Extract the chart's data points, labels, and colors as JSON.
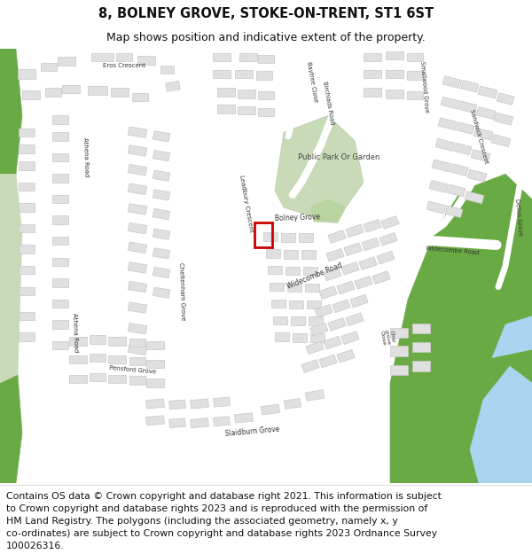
{
  "title_line1": "8, BOLNEY GROVE, STOKE-ON-TRENT, ST1 6ST",
  "title_line2": "Map shows position and indicative extent of the property.",
  "footer_lines": [
    "Contains OS data © Crown copyright and database right 2021. This information is subject",
    "to Crown copyright and database rights 2023 and is reproduced with the permission of",
    "HM Land Registry. The polygons (including the associated geometry, namely x, y",
    "co-ordinates) are subject to Crown copyright and database rights 2023 Ordnance Survey",
    "100026316."
  ],
  "map_bg": "#f0f0f0",
  "road_color": "#ffffff",
  "building_fill": "#e0e0e0",
  "building_edge": "#c8c8c8",
  "green_light": "#c8dab8",
  "green_dark": "#6aaa44",
  "water_color": "#aad4f0",
  "highlight_color": "#cc0000",
  "label_color": "#333333",
  "title_fs": 10.5,
  "sub_fs": 9.0,
  "footer_fs": 7.8
}
